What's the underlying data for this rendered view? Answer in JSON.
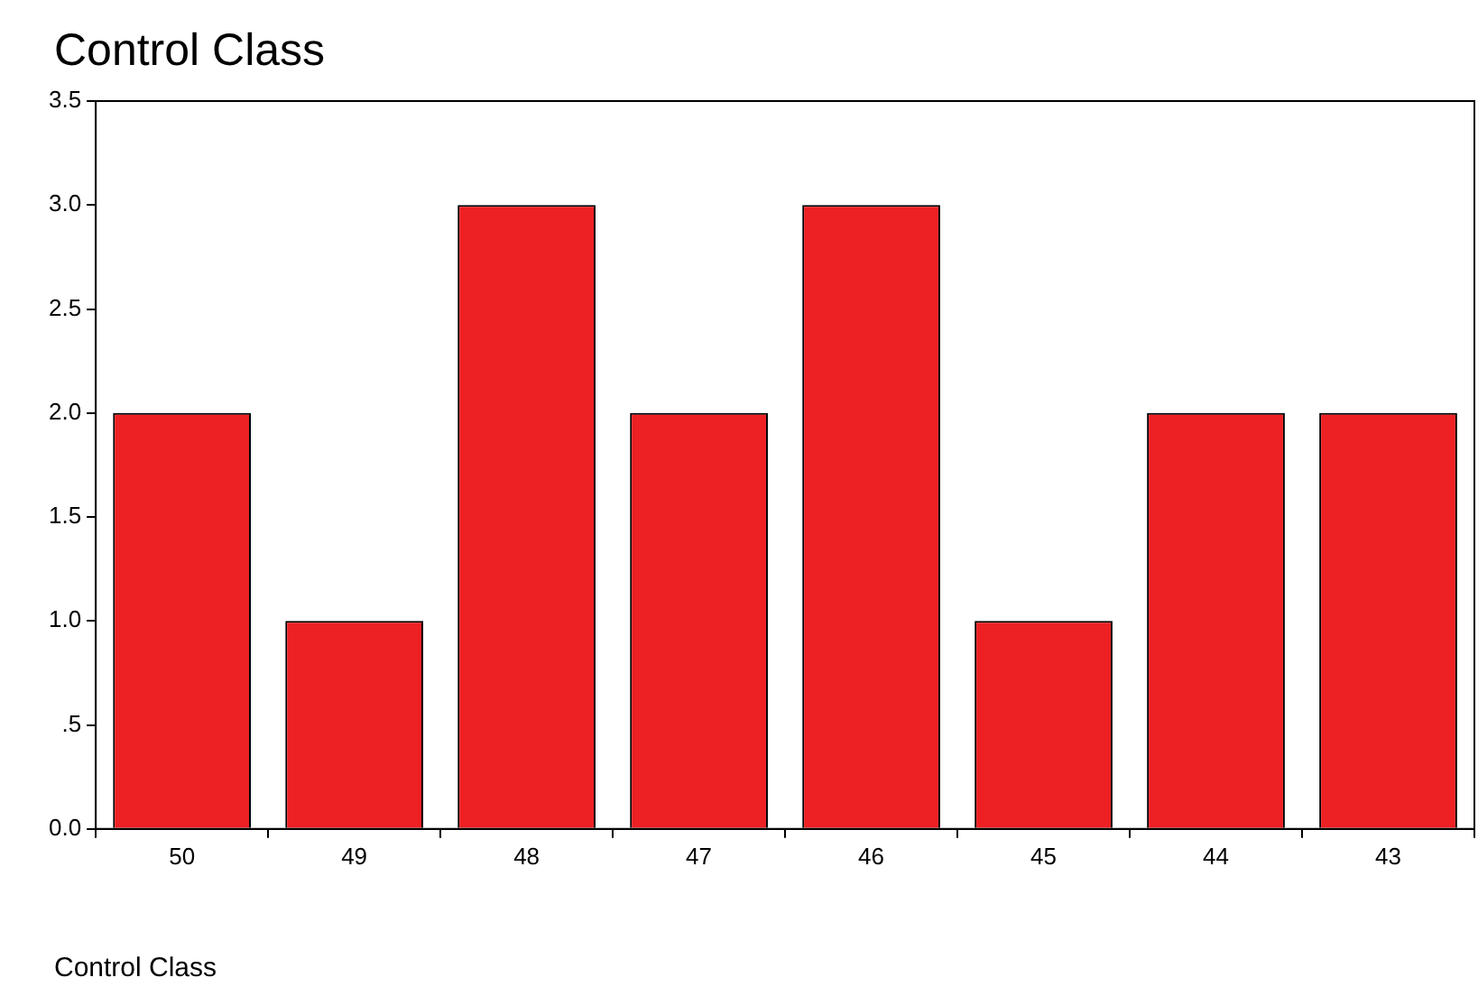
{
  "chart_data": {
    "type": "bar",
    "title": "Control Class",
    "xlabel": "Control Class",
    "categories": [
      "50",
      "49",
      "48",
      "47",
      "46",
      "45",
      "44",
      "43"
    ],
    "values": [
      2,
      1,
      3,
      2,
      3,
      1,
      2,
      2
    ],
    "color": "#ed2024",
    "ylim": [
      0,
      3.5
    ],
    "yticks": [
      {
        "value": 0,
        "label": "0.0"
      },
      {
        "value": 0.5,
        "label": ".5"
      },
      {
        "value": 1,
        "label": "1.0"
      },
      1.5,
      {
        "value": 2,
        "label": "2.0"
      },
      2.5,
      {
        "value": 3,
        "label": "3.0"
      },
      3.5
    ],
    "grid": false,
    "legend": false
  }
}
